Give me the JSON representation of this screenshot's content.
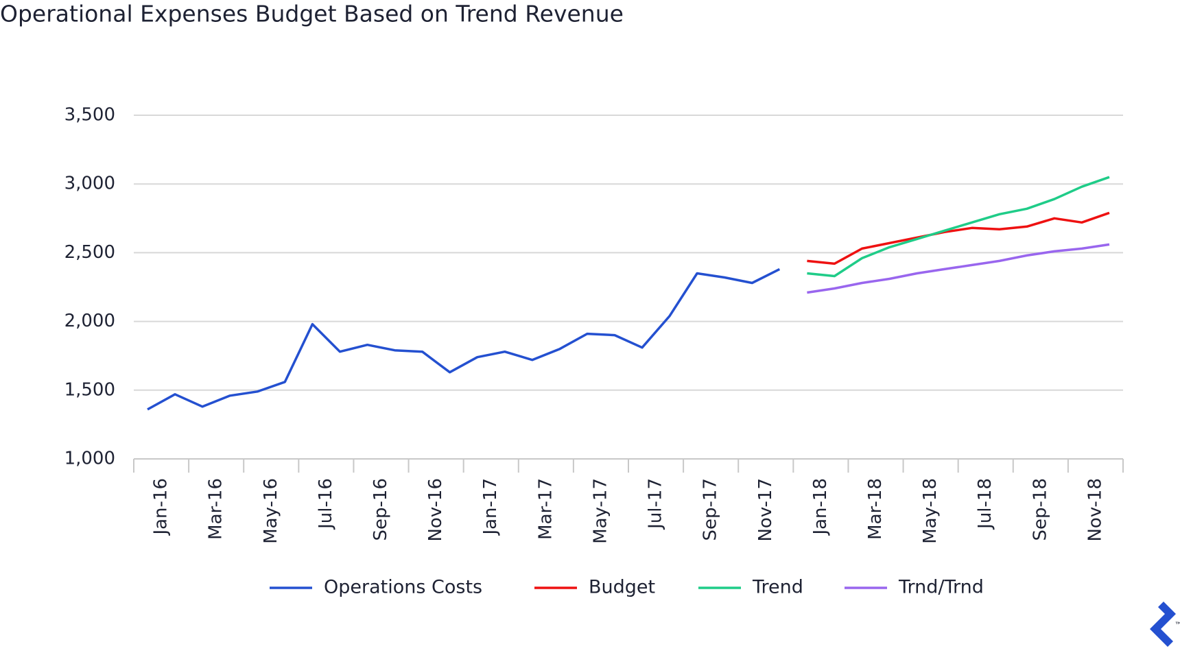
{
  "chart_data": {
    "type": "line",
    "title": "Operational Expenses Budget Based on Trend Revenue",
    "categories": [
      "Jan-16",
      null,
      "Mar-16",
      null,
      "May-16",
      null,
      "Jul-16",
      null,
      "Sep-16",
      null,
      "Nov-16",
      null,
      "Jan-17",
      null,
      "Mar-17",
      null,
      "May-17",
      null,
      "Jul-17",
      null,
      "Sep-17",
      null,
      "Nov-17",
      null,
      "Jan-18",
      null,
      "Mar-18",
      null,
      "May-18",
      null,
      "Jul-18",
      null,
      "Sep-18",
      null,
      "Nov-18",
      null
    ],
    "series": [
      {
        "name": "Operations Costs",
        "color": "#2450d0",
        "values": [
          1360,
          1470,
          1380,
          1460,
          1490,
          1560,
          1980,
          1780,
          1830,
          1790,
          1780,
          1630,
          1740,
          1780,
          1720,
          1800,
          1910,
          1900,
          1810,
          2040,
          2350,
          2320,
          2280,
          2380,
          null,
          null,
          null,
          null,
          null,
          null,
          null,
          null,
          null,
          null,
          null,
          null
        ]
      },
      {
        "name": "Budget",
        "color": "#ee1111",
        "values": [
          null,
          null,
          null,
          null,
          null,
          null,
          null,
          null,
          null,
          null,
          null,
          null,
          null,
          null,
          null,
          null,
          null,
          null,
          null,
          null,
          null,
          null,
          null,
          null,
          2440,
          2420,
          2530,
          2570,
          2610,
          2650,
          2680,
          2670,
          2690,
          2750,
          2720,
          2790
        ]
      },
      {
        "name": "Trend",
        "color": "#1fcc88",
        "values": [
          null,
          null,
          null,
          null,
          null,
          null,
          null,
          null,
          null,
          null,
          null,
          null,
          null,
          null,
          null,
          null,
          null,
          null,
          null,
          null,
          null,
          null,
          null,
          null,
          2350,
          2330,
          2460,
          2540,
          2600,
          2660,
          2720,
          2780,
          2820,
          2890,
          2980,
          3050
        ]
      },
      {
        "name": "Trnd/Trnd",
        "color": "#9966ee",
        "values": [
          null,
          null,
          null,
          null,
          null,
          null,
          null,
          null,
          null,
          null,
          null,
          null,
          null,
          null,
          null,
          null,
          null,
          null,
          null,
          null,
          null,
          null,
          null,
          null,
          2210,
          2240,
          2280,
          2310,
          2350,
          2380,
          2410,
          2440,
          2480,
          2510,
          2530,
          2560
        ]
      }
    ],
    "ylim": [
      1000,
      3500
    ],
    "yticks": [
      {
        "value": 1000,
        "label": "1,000"
      },
      {
        "value": 1500,
        "label": "1,500"
      },
      {
        "value": 2000,
        "label": "2,000"
      },
      {
        "value": 2500,
        "label": "2,500"
      },
      {
        "value": 3000,
        "label": "3,000"
      },
      {
        "value": 3500,
        "label": "3,500"
      }
    ],
    "grid": true,
    "legend": "bottom"
  },
  "watermark": "™"
}
